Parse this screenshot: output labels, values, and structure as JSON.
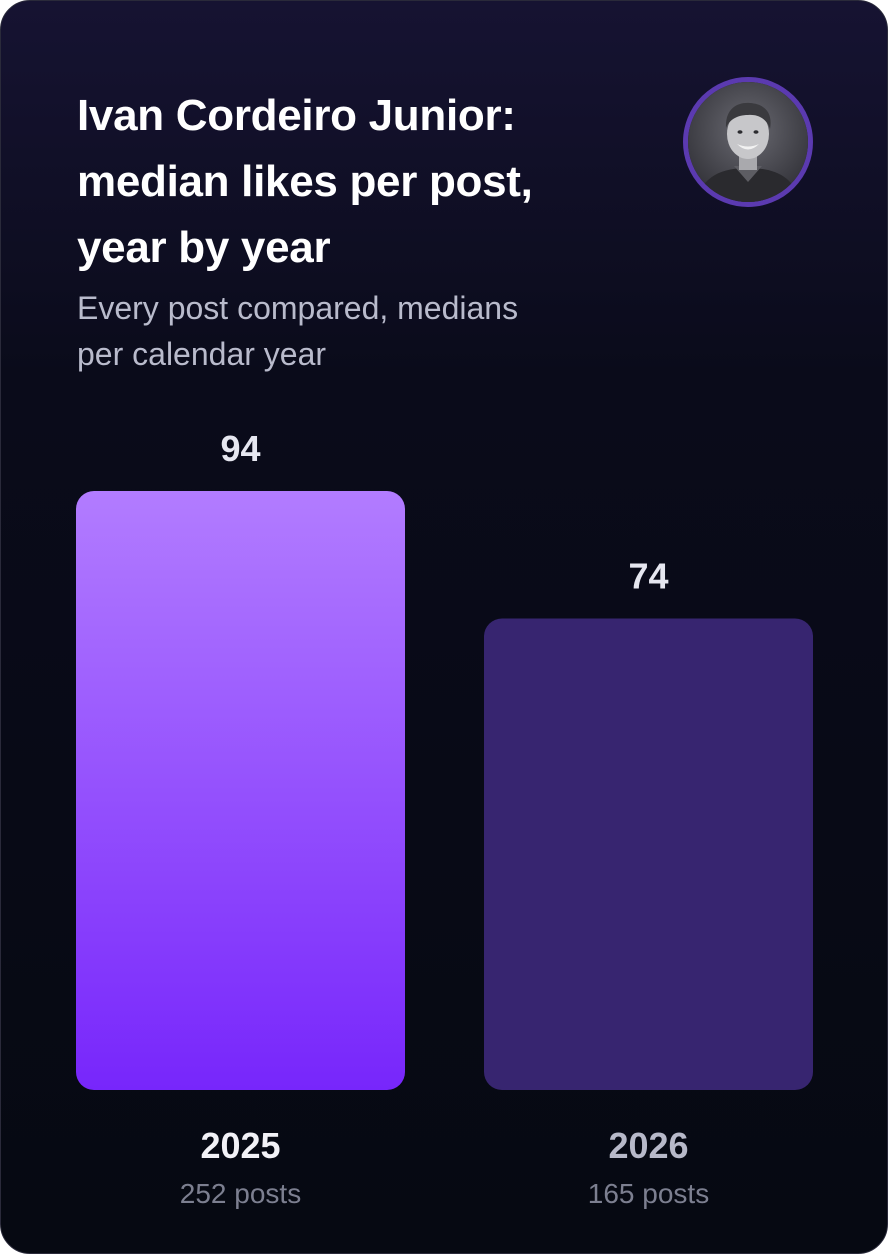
{
  "header": {
    "title_lines": [
      "Ivan Cordeiro Junior:",
      "median likes per post,",
      "year by year"
    ],
    "subtitle_lines": [
      "Every post compared, medians",
      "per calendar year"
    ]
  },
  "avatar": {
    "icon": "profile-photo"
  },
  "colors": {
    "bar_primary_top": "#b27cff",
    "bar_primary_bottom": "#7726fb",
    "bar_secondary": "#372570",
    "avatar_ring": "#5b3ab0"
  },
  "chart_data": {
    "type": "bar",
    "categories": [
      "2025",
      "2026"
    ],
    "values": [
      94,
      74
    ],
    "post_counts": [
      "252 posts",
      "165 posts"
    ],
    "title": "Ivan Cordeiro Junior: median likes per post, year by year",
    "subtitle": "Every post compared, medians per calendar year",
    "ylim": [
      0,
      94
    ],
    "grid": false,
    "legend": "none"
  }
}
